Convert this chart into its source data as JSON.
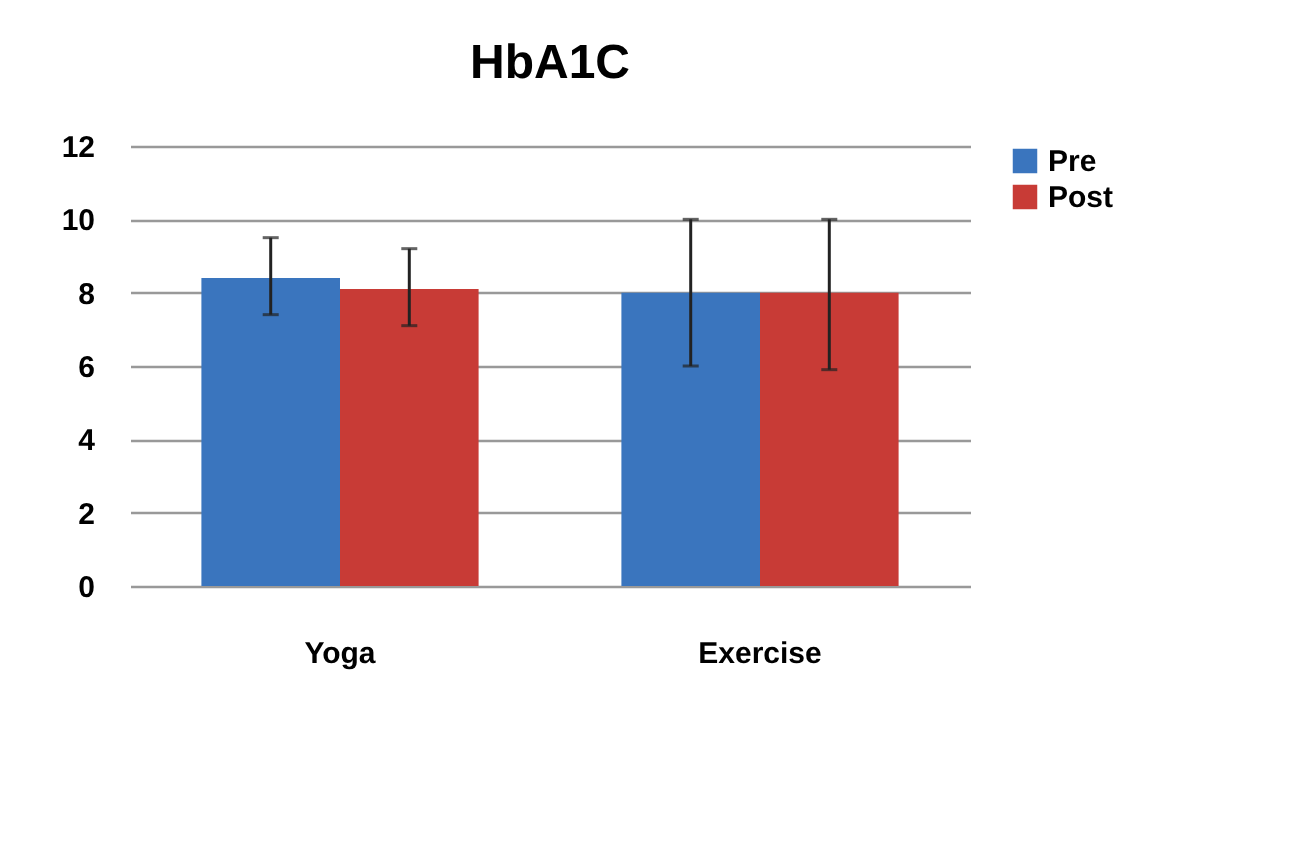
{
  "chart_data": {
    "type": "bar",
    "title": "HbA1C",
    "categories": [
      "Yoga",
      "Exercise"
    ],
    "series": [
      {
        "name": "Pre",
        "color": "#3a75be",
        "values": [
          8.4,
          8.0
        ],
        "errors": [
          [
            7.4,
            9.5
          ],
          [
            6.0,
            10.0
          ]
        ]
      },
      {
        "name": "Post",
        "color": "#c83b36",
        "values": [
          8.1,
          8.0
        ],
        "errors": [
          [
            7.1,
            9.2
          ],
          [
            5.9,
            10.0
          ]
        ]
      }
    ],
    "ylim": [
      0,
      12
    ],
    "yticks": [
      0,
      2,
      4,
      6,
      8,
      10,
      12
    ],
    "grid": "y",
    "legend": "right"
  }
}
